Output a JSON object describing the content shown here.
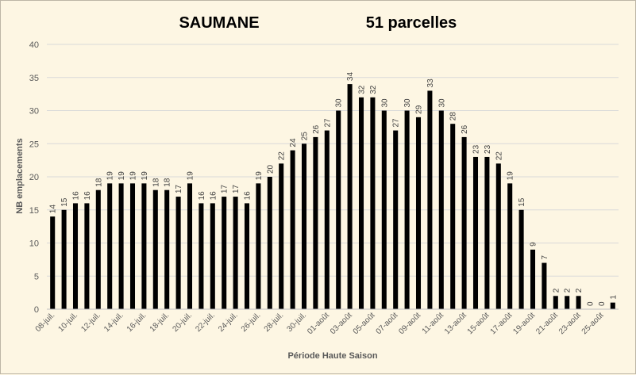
{
  "chart_data": {
    "type": "bar",
    "title": "SAUMANE",
    "subtitle": "51 parcelles",
    "xlabel": "Période Haute Saison",
    "ylabel": "NB emplacements",
    "ylim": [
      0,
      40
    ],
    "yticks": [
      0,
      5,
      10,
      15,
      20,
      25,
      30,
      35,
      40
    ],
    "grid": true,
    "bar_color": "#000000",
    "categories": [
      "08-juil.",
      "09-juil.",
      "10-juil.",
      "11-juil.",
      "12-juil.",
      "13-juil.",
      "14-juil.",
      "15-juil.",
      "16-juil.",
      "17-juil.",
      "18-juil.",
      "19-juil.",
      "20-juil.",
      "21-juil.",
      "22-juil.",
      "23-juil.",
      "24-juil.",
      "25-juil.",
      "26-juil.",
      "27-juil.",
      "28-juil.",
      "29-juil.",
      "30-juil.",
      "31-juil.",
      "01-août",
      "02-août",
      "03-août",
      "04-août",
      "05-août",
      "06-août",
      "07-août",
      "08-août",
      "09-août",
      "10-août",
      "11-août",
      "12-août",
      "13-août",
      "14-août",
      "15-août",
      "16-août",
      "17-août",
      "18-août",
      "19-août",
      "20-août",
      "21-août",
      "22-août",
      "23-août",
      "24-août",
      "25-août",
      "26-août"
    ],
    "values": [
      14,
      15,
      16,
      16,
      18,
      19,
      19,
      19,
      19,
      18,
      18,
      17,
      19,
      16,
      16,
      17,
      17,
      16,
      19,
      20,
      22,
      24,
      25,
      26,
      27,
      30,
      34,
      32,
      32,
      30,
      27,
      30,
      29,
      33,
      30,
      28,
      26,
      23,
      23,
      22,
      19,
      15,
      9,
      7,
      2,
      2,
      2,
      0,
      0,
      1
    ],
    "label_every": 2
  }
}
